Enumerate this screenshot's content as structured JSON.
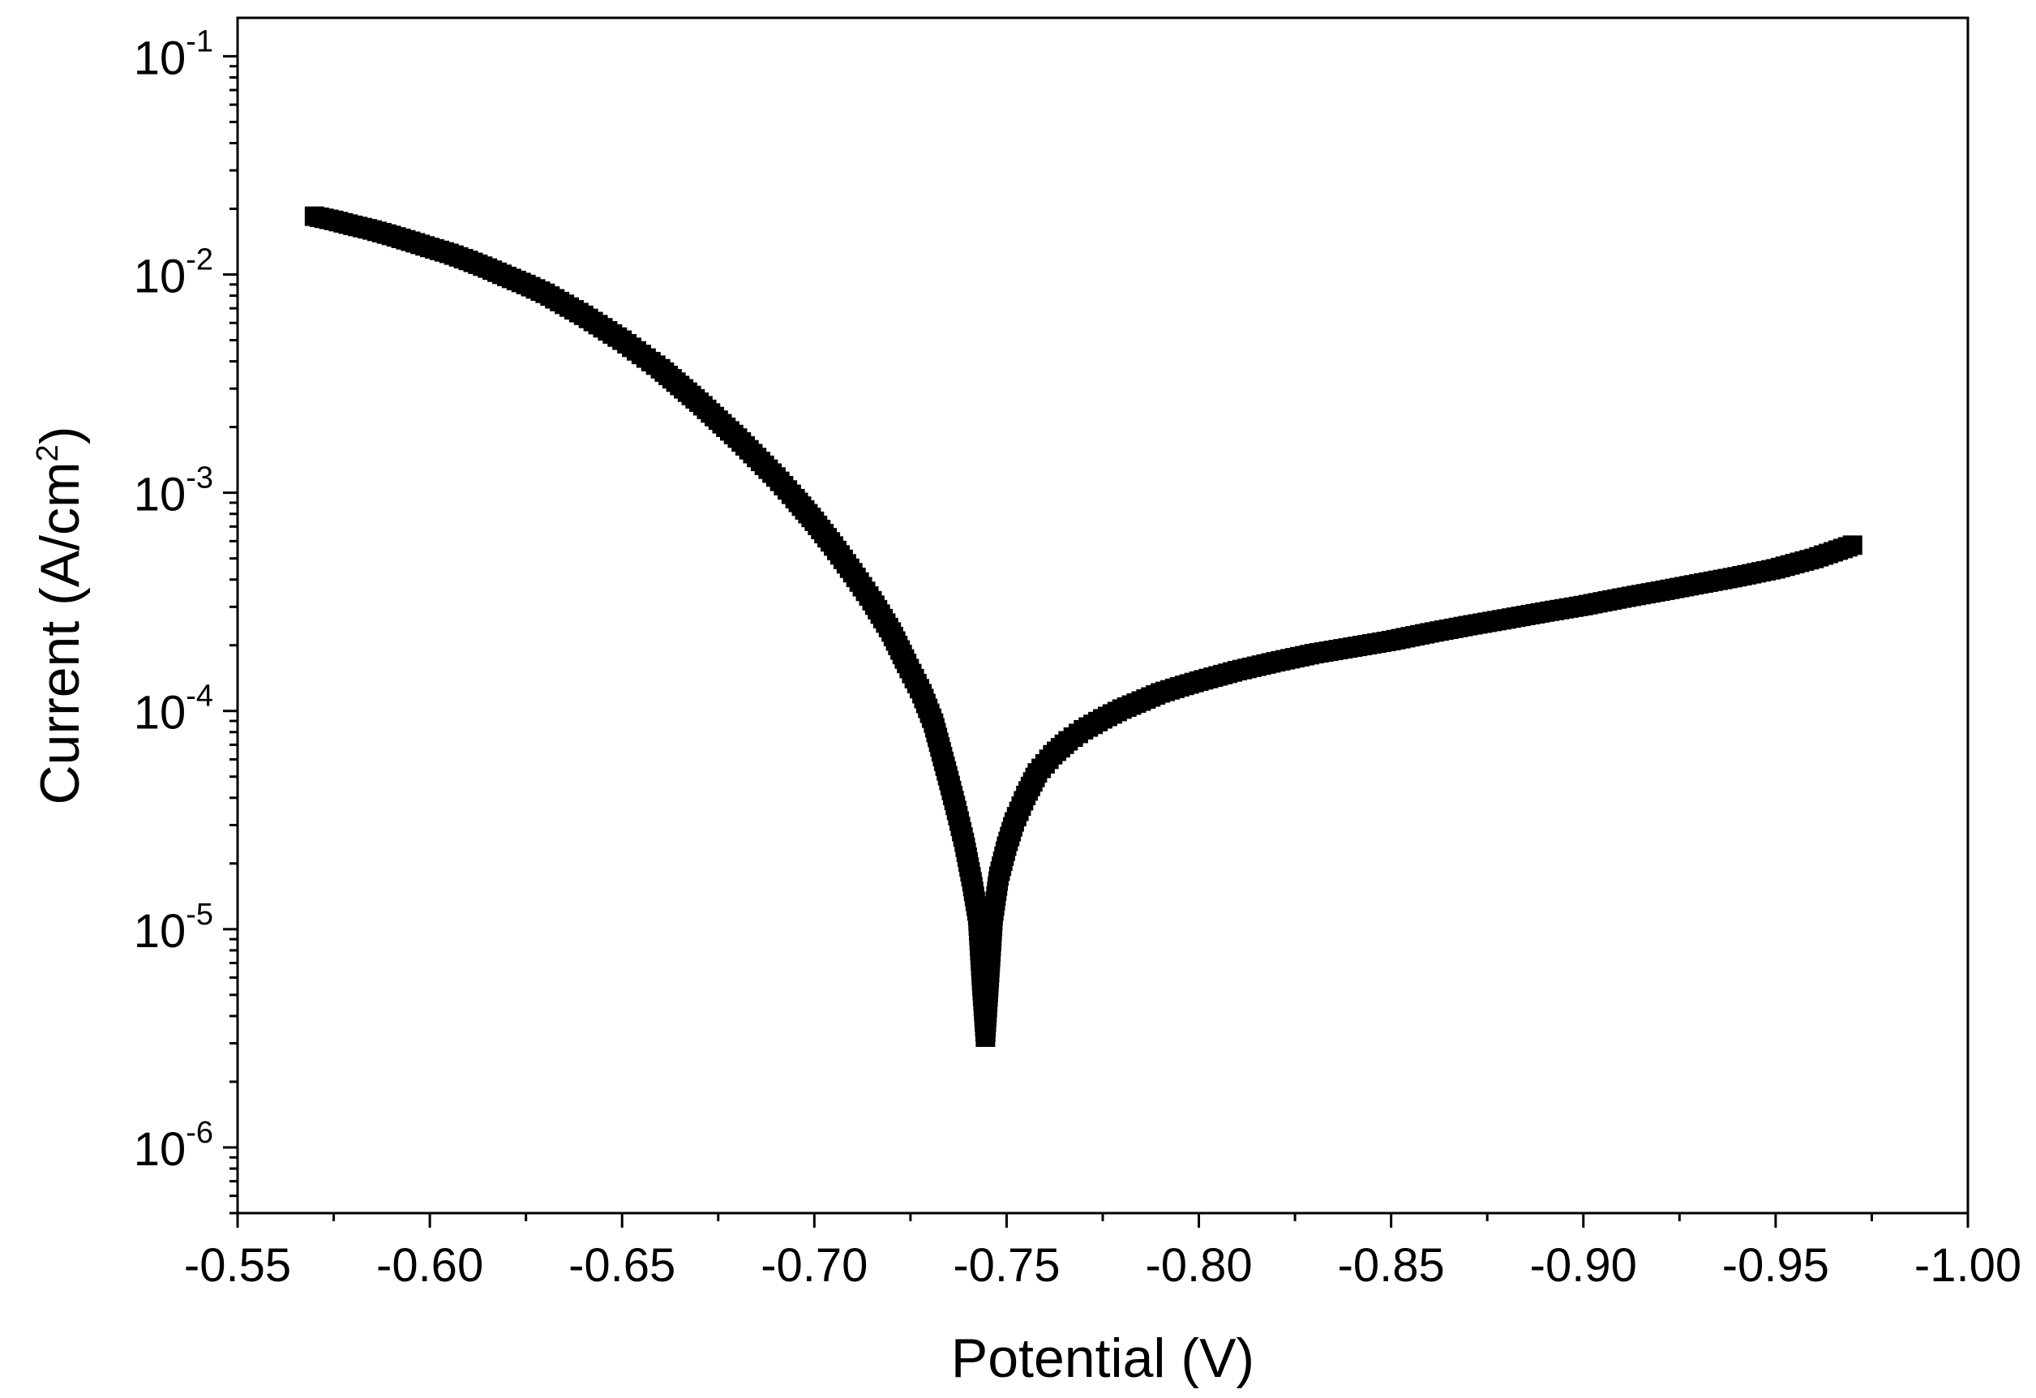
{
  "chart_data": {
    "type": "scatter",
    "title": "",
    "xlabel": "Potential (V)",
    "ylabel_parts": [
      "Current (A/cm",
      "2",
      ")"
    ],
    "x_axis": {
      "reversed": true,
      "xlim": [
        -0.55,
        -1.0
      ],
      "ticks": [
        -0.55,
        -0.6,
        -0.65,
        -0.7,
        -0.75,
        -0.8,
        -0.85,
        -0.9,
        -0.95,
        -1.0
      ],
      "tick_labels": [
        "-0.55",
        "-0.60",
        "-0.65",
        "-0.70",
        "-0.75",
        "-0.80",
        "-0.85",
        "-0.90",
        "-0.95",
        "-1.00"
      ]
    },
    "y_axis": {
      "scale": "log",
      "ylim": [
        5e-07,
        0.15
      ],
      "ticks": [
        1e-06,
        1e-05,
        0.0001,
        0.001,
        0.01,
        0.1
      ],
      "tick_labels": [
        {
          "base": "10",
          "exp": "-6"
        },
        {
          "base": "10",
          "exp": "-5"
        },
        {
          "base": "10",
          "exp": "-4"
        },
        {
          "base": "10",
          "exp": "-3"
        },
        {
          "base": "10",
          "exp": "-2"
        },
        {
          "base": "10",
          "exp": "-1"
        }
      ]
    },
    "grid": false,
    "legend": "none",
    "colors": {
      "marker": "#000000",
      "line": "#000000",
      "axis": "#000000"
    },
    "marker": "square",
    "series": [
      {
        "x": [
          -0.57,
          -0.575,
          -0.58,
          -0.585,
          -0.59,
          -0.595,
          -0.6,
          -0.605,
          -0.61,
          -0.615,
          -0.62,
          -0.625,
          -0.63,
          -0.635,
          -0.64,
          -0.645,
          -0.65,
          -0.655,
          -0.66,
          -0.665,
          -0.67,
          -0.675,
          -0.68,
          -0.685,
          -0.69,
          -0.695,
          -0.7,
          -0.705,
          -0.71,
          -0.715,
          -0.72,
          -0.724,
          -0.728,
          -0.731,
          -0.733,
          -0.735,
          -0.737,
          -0.739,
          -0.741,
          -0.7425,
          -0.7435,
          -0.7445,
          -0.7455,
          -0.7465,
          -0.748,
          -0.75,
          -0.752,
          -0.755,
          -0.758,
          -0.762,
          -0.766,
          -0.77,
          -0.775,
          -0.78,
          -0.785,
          -0.79,
          -0.795,
          -0.8,
          -0.81,
          -0.82,
          -0.83,
          -0.84,
          -0.85,
          -0.86,
          -0.87,
          -0.88,
          -0.89,
          -0.9,
          -0.91,
          -0.92,
          -0.93,
          -0.94,
          -0.95,
          -0.96,
          -0.97
        ],
        "y": [
          0.0185,
          0.0177,
          0.0168,
          0.016,
          0.0151,
          0.0142,
          0.0133,
          0.0125,
          0.0116,
          0.0107,
          0.0098,
          0.009,
          0.0082,
          0.0073,
          0.0065,
          0.0057,
          0.005,
          0.0043,
          0.0037,
          0.0031,
          0.0026,
          0.00215,
          0.00178,
          0.00145,
          0.00118,
          0.00094,
          0.00074,
          0.00057,
          0.00043,
          0.00032,
          0.00023,
          0.000165,
          0.00012,
          8.8e-05,
          6.5e-05,
          4.8e-05,
          3.5e-05,
          2.5e-05,
          1.65e-05,
          1.15e-05,
          5.8e-06,
          3.2e-06,
          6e-06,
          1.15e-05,
          1.75e-05,
          2.4e-05,
          3.1e-05,
          4.1e-05,
          5.2e-05,
          6.3e-05,
          7.3e-05,
          8.2e-05,
          9.2e-05,
          0.000102,
          0.000111,
          0.000121,
          0.000129,
          0.000137,
          0.000153,
          0.000168,
          0.000183,
          0.000196,
          0.00021,
          0.000228,
          0.000246,
          0.000264,
          0.000284,
          0.000304,
          0.000329,
          0.000354,
          0.000382,
          0.000412,
          0.000448,
          0.0005,
          0.000575
        ]
      }
    ]
  }
}
